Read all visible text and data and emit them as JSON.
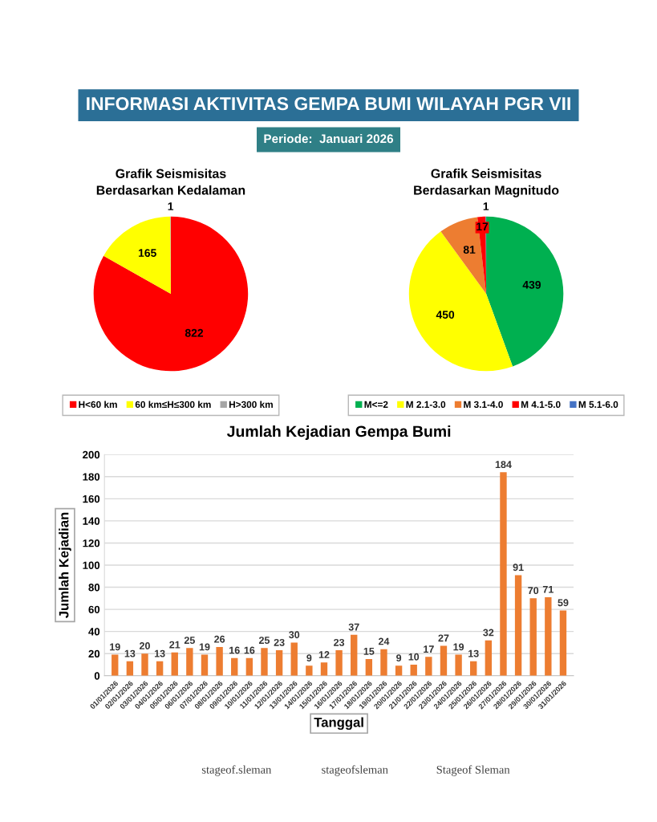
{
  "chart_data": [
    {
      "type": "other",
      "title": "INFORMASI AKTIVITAS GEMPA BUMI WILAYAH PGR VII",
      "subtitle": "Periode:  Januari 2026",
      "annotations": [
        "stageof.sleman",
        "stageofsleman",
        "Stageof Sleman"
      ]
    },
    {
      "type": "pie",
      "title": "Grafik Seismisitas\nBerdasarkan Kedalaman",
      "categories": [
        "H<60 km",
        "60 km≤H≤300 km",
        "H>300 km"
      ],
      "values": [
        822,
        165,
        1
      ],
      "colors": [
        "#ff0000",
        "#ffff00",
        "#a5a5a5"
      ],
      "data_labels": true,
      "legend": "bottom"
    },
    {
      "type": "pie",
      "title": "Grafik Seismisitas\nBerdasarkan Magnitudo",
      "categories": [
        "M<=2",
        "M 2.1-3.0",
        "M 3.1-4.0",
        "M 4.1-5.0",
        "M 5.1-6.0"
      ],
      "values": [
        439,
        450,
        81,
        17,
        1
      ],
      "colors": [
        "#00b050",
        "#ffff00",
        "#ed7d31",
        "#ff0000",
        "#4472c4"
      ],
      "data_labels": true,
      "legend": "bottom"
    },
    {
      "type": "bar",
      "title": "Jumlah Kejadian Gempa Bumi",
      "xlabel": "Tanggal",
      "ylabel": "Jumlah Kejadian",
      "categories": [
        "01/01/2026",
        "02/01/2026",
        "03/01/2026",
        "04/01/2026",
        "05/01/2026",
        "06/01/2026",
        "07/01/2026",
        "08/01/2026",
        "09/01/2026",
        "10/01/2026",
        "11/01/2026",
        "12/01/2026",
        "13/01/2026",
        "14/01/2026",
        "15/01/2026",
        "16/01/2026",
        "17/01/2026",
        "18/01/2026",
        "19/01/2026",
        "20/01/2026",
        "21/01/2026",
        "22/01/2026",
        "23/01/2026",
        "24/01/2026",
        "25/01/2026",
        "26/01/2026",
        "27/01/2026",
        "28/01/2026",
        "29/01/2026",
        "30/01/2026",
        "31/01/2026"
      ],
      "values": [
        19,
        13,
        20,
        13,
        21,
        25,
        19,
        26,
        16,
        16,
        25,
        23,
        30,
        9,
        12,
        23,
        37,
        15,
        24,
        9,
        10,
        17,
        27,
        19,
        13,
        32,
        184,
        91,
        70,
        71,
        59
      ],
      "color": "#ed7d31",
      "ylim": [
        0,
        200
      ],
      "yticks": [
        0,
        20,
        40,
        60,
        80,
        100,
        120,
        140,
        160,
        180,
        200
      ],
      "grid": "y",
      "data_labels": true
    }
  ]
}
